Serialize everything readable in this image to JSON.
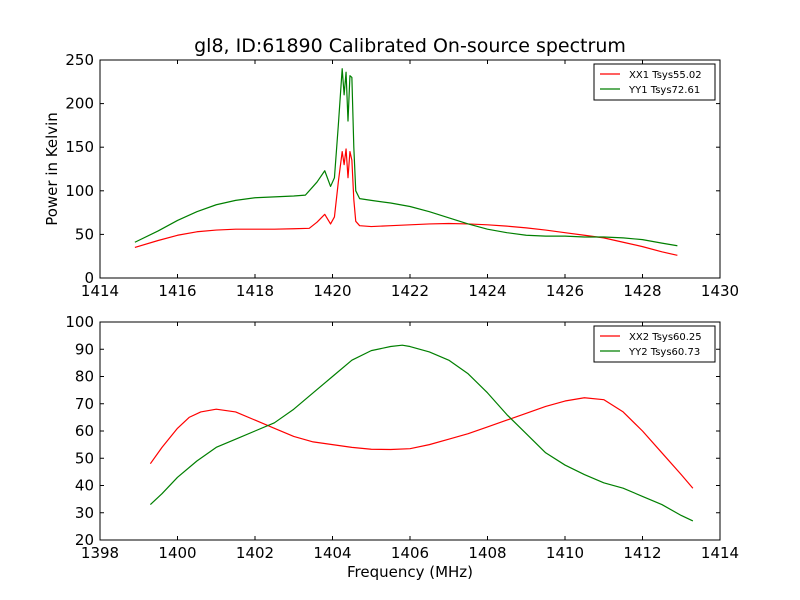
{
  "chart_data": [
    {
      "type": "line",
      "title": "gl8, ID:61890 Calibrated On-source spectrum",
      "xlabel": "",
      "ylabel": "Power in Kelvin",
      "xlim": [
        1414,
        1430
      ],
      "ylim": [
        0,
        250
      ],
      "xticks": [
        "1414",
        "1416",
        "1418",
        "1420",
        "1422",
        "1424",
        "1426",
        "1428",
        "1430"
      ],
      "yticks": [
        "0",
        "50",
        "100",
        "150",
        "200",
        "250"
      ],
      "legend_position": "top-right",
      "series": [
        {
          "name": "XX1 Tsys55.02",
          "color": "#ff0000",
          "x": [
            1414.9,
            1415.5,
            1416.0,
            1416.5,
            1417.0,
            1417.5,
            1418.0,
            1418.5,
            1419.0,
            1419.4,
            1419.6,
            1419.8,
            1419.95,
            1420.05,
            1420.15,
            1420.25,
            1420.3,
            1420.35,
            1420.4,
            1420.45,
            1420.5,
            1420.55,
            1420.6,
            1420.7,
            1421.0,
            1421.5,
            1422.0,
            1422.5,
            1423.0,
            1423.5,
            1424.0,
            1424.5,
            1425.0,
            1425.5,
            1426.0,
            1426.5,
            1427.0,
            1427.5,
            1428.0,
            1428.5,
            1428.9
          ],
          "values": [
            35,
            43,
            49,
            53,
            55,
            56,
            56,
            56,
            56.5,
            57,
            64,
            73,
            62,
            70,
            110,
            145,
            130,
            148,
            115,
            145,
            135,
            90,
            65,
            60,
            59,
            60,
            61,
            62,
            62.5,
            62,
            61,
            59.5,
            57.5,
            55,
            52,
            49,
            46,
            41,
            36,
            30,
            26
          ]
        },
        {
          "name": "YY1 Tsys72.61",
          "color": "#007f00",
          "x": [
            1414.9,
            1415.5,
            1416.0,
            1416.5,
            1417.0,
            1417.5,
            1418.0,
            1418.5,
            1419.0,
            1419.3,
            1419.5,
            1419.6,
            1419.8,
            1419.95,
            1420.05,
            1420.15,
            1420.25,
            1420.3,
            1420.35,
            1420.4,
            1420.45,
            1420.5,
            1420.55,
            1420.6,
            1420.7,
            1421.0,
            1421.5,
            1422.0,
            1422.5,
            1423.0,
            1423.5,
            1424.0,
            1424.5,
            1425.0,
            1425.5,
            1426.0,
            1426.5,
            1427.0,
            1427.5,
            1428.0,
            1428.5,
            1428.9
          ],
          "values": [
            41,
            54,
            66,
            76,
            84,
            89,
            92,
            93,
            94,
            95,
            105,
            110,
            123,
            105,
            115,
            175,
            240,
            210,
            236,
            180,
            232,
            230,
            150,
            100,
            91,
            89,
            86,
            82,
            76,
            69,
            62,
            56,
            52,
            49,
            48,
            48,
            47,
            47,
            46,
            44,
            40,
            37
          ]
        }
      ]
    },
    {
      "type": "line",
      "title": "",
      "xlabel": "Frequency (MHz)",
      "ylabel": "",
      "xlim": [
        1398,
        1414
      ],
      "ylim": [
        20,
        100
      ],
      "xticks": [
        "1398",
        "1400",
        "1402",
        "1404",
        "1406",
        "1408",
        "1410",
        "1412",
        "1414"
      ],
      "yticks": [
        "20",
        "30",
        "40",
        "50",
        "60",
        "70",
        "80",
        "90",
        "100"
      ],
      "legend_position": "top-right",
      "series": [
        {
          "name": "XX2 Tsys60.25",
          "color": "#ff0000",
          "x": [
            1399.3,
            1399.6,
            1400.0,
            1400.3,
            1400.6,
            1401.0,
            1401.5,
            1402.0,
            1402.5,
            1403.0,
            1403.5,
            1404.0,
            1404.5,
            1405.0,
            1405.5,
            1406.0,
            1406.5,
            1407.0,
            1407.5,
            1408.0,
            1408.5,
            1409.0,
            1409.5,
            1410.0,
            1410.5,
            1411.0,
            1411.5,
            1412.0,
            1412.5,
            1413.0,
            1413.3
          ],
          "values": [
            48,
            54,
            61,
            65,
            67,
            68,
            67,
            64,
            61,
            58,
            56,
            55,
            54,
            53.3,
            53.2,
            53.5,
            55,
            57,
            59,
            61.5,
            64,
            66.5,
            69,
            71,
            72.2,
            71.5,
            67,
            60,
            52,
            44,
            39
          ]
        },
        {
          "name": "YY2 Tsys60.73",
          "color": "#007f00",
          "x": [
            1399.3,
            1399.6,
            1400.0,
            1400.5,
            1401.0,
            1401.5,
            1402.0,
            1402.5,
            1403.0,
            1403.5,
            1404.0,
            1404.5,
            1405.0,
            1405.5,
            1405.8,
            1406.0,
            1406.5,
            1407.0,
            1407.5,
            1408.0,
            1408.5,
            1409.0,
            1409.5,
            1410.0,
            1410.5,
            1411.0,
            1411.5,
            1412.0,
            1412.5,
            1413.0,
            1413.3
          ],
          "values": [
            33,
            37,
            43,
            49,
            54,
            57,
            60,
            63,
            68,
            74,
            80,
            86,
            89.5,
            91,
            91.5,
            91,
            89,
            86,
            81,
            74,
            66,
            59,
            52,
            47.5,
            44,
            41,
            39,
            36,
            33,
            29,
            27
          ]
        }
      ]
    }
  ]
}
